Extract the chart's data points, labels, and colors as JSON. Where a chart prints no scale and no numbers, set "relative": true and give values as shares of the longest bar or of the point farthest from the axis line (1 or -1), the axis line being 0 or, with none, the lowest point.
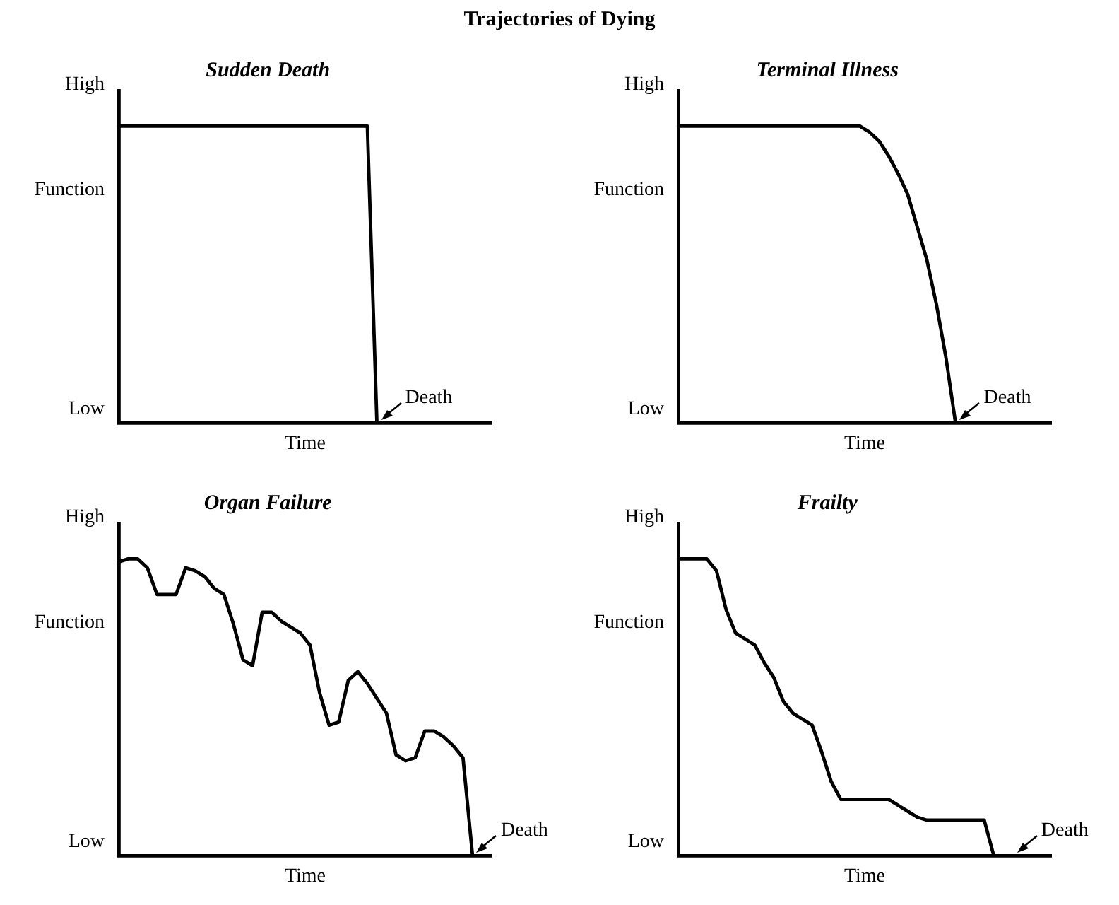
{
  "chart_data": [
    {
      "type": "line",
      "title": "Sudden Death",
      "xlabel": "Time",
      "ylabel": "Function",
      "annotations": [
        "Trajectories of Dying",
        "High",
        "Low",
        "Death"
      ],
      "relative": true,
      "tick_labels": false,
      "marker": "none",
      "color": "#000000",
      "categories": [
        null,
        null,
        null,
        null,
        null,
        null,
        null,
        null,
        null,
        null,
        null,
        null,
        null,
        null,
        null,
        null,
        null,
        null,
        null,
        null,
        null,
        null,
        null,
        null,
        null,
        null,
        null,
        null,
        null,
        null,
        null,
        null,
        null,
        null,
        null,
        null,
        null,
        null,
        null,
        null
      ],
      "values": [
        1,
        1,
        1,
        1,
        1,
        1,
        1,
        1,
        1,
        1,
        1,
        1,
        1,
        1,
        1,
        1,
        1,
        1,
        1,
        1,
        1,
        1,
        1,
        1,
        1,
        1,
        1,
        0,
        null,
        null,
        null,
        null,
        null,
        null,
        null,
        null,
        null,
        null,
        null,
        null
      ]
    },
    {
      "type": "line",
      "title": "Terminal Illness",
      "xlabel": "Time",
      "ylabel": "Function",
      "annotations": [
        "High",
        "Low",
        "Death"
      ],
      "relative": true,
      "tick_labels": false,
      "marker": "none",
      "color": "#000000",
      "categories": [
        null,
        null,
        null,
        null,
        null,
        null,
        null,
        null,
        null,
        null,
        null,
        null,
        null,
        null,
        null,
        null,
        null,
        null,
        null,
        null,
        null,
        null,
        null,
        null,
        null,
        null,
        null,
        null,
        null,
        null,
        null,
        null,
        null,
        null,
        null,
        null,
        null,
        null,
        null,
        null
      ],
      "values": [
        1,
        1,
        1,
        1,
        1,
        1,
        1,
        1,
        1,
        1,
        1,
        1,
        1,
        1,
        1,
        1,
        1,
        1,
        1,
        1,
        0.98,
        0.95,
        0.9,
        0.84,
        0.77,
        0.66,
        0.55,
        0.4,
        0.22,
        0,
        null,
        null,
        null,
        null,
        null,
        null,
        null,
        null,
        null,
        null
      ]
    },
    {
      "type": "line",
      "title": "Organ Failure",
      "xlabel": "Time",
      "ylabel": "Function",
      "annotations": [
        "High",
        "Low",
        "Death"
      ],
      "relative": true,
      "tick_labels": false,
      "marker": "none",
      "color": "#000000",
      "categories": [
        null,
        null,
        null,
        null,
        null,
        null,
        null,
        null,
        null,
        null,
        null,
        null,
        null,
        null,
        null,
        null,
        null,
        null,
        null,
        null,
        null,
        null,
        null,
        null,
        null,
        null,
        null,
        null,
        null,
        null,
        null,
        null,
        null,
        null,
        null,
        null,
        null,
        null,
        null,
        null
      ],
      "values": [
        0.99,
        1,
        1,
        0.97,
        0.88,
        0.88,
        0.88,
        0.97,
        0.96,
        0.94,
        0.9,
        0.88,
        0.78,
        0.66,
        0.64,
        0.82,
        0.82,
        0.79,
        0.77,
        0.75,
        0.71,
        0.55,
        0.44,
        0.45,
        0.59,
        0.62,
        0.58,
        0.53,
        0.48,
        0.34,
        0.32,
        0.33,
        0.42,
        0.42,
        0.4,
        0.37,
        0.33,
        0,
        null,
        null
      ]
    },
    {
      "type": "line",
      "title": "Frailty",
      "xlabel": "Time",
      "ylabel": "Function",
      "annotations": [
        "High",
        "Low",
        "Death"
      ],
      "relative": true,
      "tick_labels": false,
      "marker": "none",
      "color": "#000000",
      "categories": [
        null,
        null,
        null,
        null,
        null,
        null,
        null,
        null,
        null,
        null,
        null,
        null,
        null,
        null,
        null,
        null,
        null,
        null,
        null,
        null,
        null,
        null,
        null,
        null,
        null,
        null,
        null,
        null,
        null,
        null,
        null,
        null,
        null,
        null,
        null,
        null,
        null,
        null,
        null,
        null
      ],
      "values": [
        1,
        1,
        1,
        1,
        0.96,
        0.83,
        0.75,
        0.73,
        0.71,
        0.65,
        0.6,
        0.52,
        0.48,
        0.46,
        0.44,
        0.35,
        0.25,
        0.19,
        0.19,
        0.19,
        0.19,
        0.19,
        0.19,
        0.17,
        0.15,
        0.13,
        0.12,
        0.12,
        0.12,
        0.12,
        0.12,
        0.12,
        0.12,
        0,
        0,
        0,
        null,
        null,
        null,
        null
      ]
    }
  ]
}
